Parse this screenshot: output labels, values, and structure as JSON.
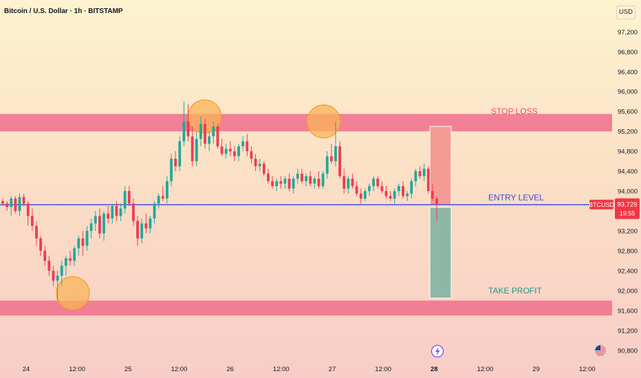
{
  "header": {
    "title": "Bitcoin / U.S. Dollar · 1h · BITSTAMP",
    "currency": "USD"
  },
  "colors": {
    "up": "#22a89a",
    "down": "#f03b52",
    "band": "#f06f8c",
    "entry_line": "#3b4ad8",
    "stop_zone": "#f59b95",
    "profit_zone": "#8fb7a6",
    "circle_fill": "#f9b45a",
    "circle_stroke": "#f5a028"
  },
  "chart_data": {
    "type": "candlestick",
    "symbol": "BTCUSD",
    "y_ticks": [
      97200,
      96800,
      96400,
      96000,
      95600,
      95200,
      94800,
      94400,
      94000,
      93200,
      92800,
      92400,
      92000,
      91600,
      91200,
      90800
    ],
    "y_tick_labels": [
      "97,200",
      "96,800",
      "96,400",
      "96,000",
      "95,600",
      "95,200",
      "94,800",
      "94,400",
      "94,000",
      "93,200",
      "92,800",
      "92,400",
      "92,000",
      "91,600",
      "91,200",
      "90,800"
    ],
    "ylim": [
      90700,
      97550
    ],
    "x_ticks": [
      {
        "label": "24",
        "hours": 9,
        "bold": false
      },
      {
        "label": "12:00",
        "hours": 21,
        "bold": false
      },
      {
        "label": "25",
        "hours": 33,
        "bold": false
      },
      {
        "label": "12:00",
        "hours": 45,
        "bold": false
      },
      {
        "label": "26",
        "hours": 57,
        "bold": false
      },
      {
        "label": "12:00",
        "hours": 69,
        "bold": false
      },
      {
        "label": "27",
        "hours": 81,
        "bold": false
      },
      {
        "label": "12:00",
        "hours": 93,
        "bold": false
      },
      {
        "label": "28",
        "hours": 105,
        "bold": true
      },
      {
        "label": "12:00",
        "hours": 117,
        "bold": false
      },
      {
        "label": "29",
        "hours": 129,
        "bold": false
      },
      {
        "label": "12:00",
        "hours": 141,
        "bold": false
      }
    ],
    "candles": [
      [
        93800,
        93850,
        93700,
        93750
      ],
      [
        93750,
        93800,
        93600,
        93680
      ],
      [
        93680,
        93900,
        93500,
        93850
      ],
      [
        93850,
        93900,
        93550,
        93600
      ],
      [
        93600,
        93950,
        93500,
        93880
      ],
      [
        93880,
        93950,
        93700,
        93750
      ],
      [
        93750,
        93800,
        93300,
        93500
      ],
      [
        93500,
        93650,
        93200,
        93300
      ],
      [
        93300,
        93400,
        92900,
        93050
      ],
      [
        93050,
        93100,
        92700,
        92800
      ],
      [
        92800,
        92900,
        92500,
        92600
      ],
      [
        92600,
        92700,
        92300,
        92400
      ],
      [
        92400,
        92500,
        92100,
        92200
      ],
      [
        92200,
        92400,
        91800,
        92300
      ],
      [
        92300,
        92600,
        92100,
        92500
      ],
      [
        92500,
        92700,
        92300,
        92650
      ],
      [
        92650,
        92800,
        92500,
        92600
      ],
      [
        92600,
        92900,
        92500,
        92850
      ],
      [
        92850,
        93100,
        92700,
        93050
      ],
      [
        93050,
        93200,
        92700,
        92900
      ],
      [
        92900,
        93300,
        92800,
        93200
      ],
      [
        93200,
        93450,
        93050,
        93350
      ],
      [
        93350,
        93600,
        93200,
        93500
      ],
      [
        93500,
        93650,
        93050,
        93150
      ],
      [
        93150,
        93600,
        93000,
        93550
      ],
      [
        93550,
        93700,
        93350,
        93450
      ],
      [
        93450,
        93750,
        93350,
        93700
      ],
      [
        93700,
        93800,
        93400,
        93500
      ],
      [
        93500,
        93750,
        93400,
        93650
      ],
      [
        93650,
        94100,
        93550,
        94000
      ],
      [
        94000,
        94100,
        93700,
        93750
      ],
      [
        93750,
        93850,
        93300,
        93400
      ],
      [
        93400,
        93500,
        92900,
        93050
      ],
      [
        93050,
        93450,
        92950,
        93350
      ],
      [
        93350,
        93550,
        93150,
        93250
      ],
      [
        93250,
        93500,
        93150,
        93450
      ],
      [
        93450,
        93800,
        93350,
        93750
      ],
      [
        93750,
        93950,
        93650,
        93900
      ],
      [
        93900,
        94100,
        93800,
        93850
      ],
      [
        93850,
        94300,
        93750,
        94200
      ],
      [
        94200,
        94750,
        94100,
        94650
      ],
      [
        94650,
        94800,
        94400,
        94500
      ],
      [
        94500,
        95100,
        94400,
        95000
      ],
      [
        95000,
        95800,
        94900,
        95400
      ],
      [
        95400,
        95750,
        95000,
        95100
      ],
      [
        95100,
        95300,
        94500,
        94600
      ],
      [
        94600,
        95200,
        94500,
        95050
      ],
      [
        95050,
        95500,
        94900,
        95350
      ],
      [
        95350,
        95450,
        94850,
        94950
      ],
      [
        94950,
        95200,
        94800,
        95100
      ],
      [
        95100,
        95400,
        94950,
        95300
      ],
      [
        95300,
        95350,
        94850,
        94900
      ],
      [
        94900,
        95050,
        94700,
        94750
      ],
      [
        94750,
        94950,
        94650,
        94850
      ],
      [
        94850,
        95000,
        94700,
        94800
      ],
      [
        94800,
        94900,
        94600,
        94700
      ],
      [
        94700,
        94950,
        94600,
        94900
      ],
      [
        94900,
        95100,
        94800,
        95000
      ],
      [
        95000,
        95150,
        94700,
        94800
      ],
      [
        94800,
        94900,
        94550,
        94650
      ],
      [
        94650,
        94750,
        94400,
        94500
      ],
      [
        94500,
        94650,
        94400,
        94550
      ],
      [
        94550,
        94600,
        94300,
        94350
      ],
      [
        94350,
        94450,
        94150,
        94200
      ],
      [
        94200,
        94300,
        94050,
        94100
      ],
      [
        94100,
        94250,
        94000,
        94200
      ],
      [
        94200,
        94300,
        94050,
        94150
      ],
      [
        94150,
        94300,
        94050,
        94250
      ],
      [
        94250,
        94350,
        94000,
        94050
      ],
      [
        94050,
        94300,
        93950,
        94250
      ],
      [
        94250,
        94450,
        94150,
        94350
      ],
      [
        94350,
        94450,
        94150,
        94200
      ],
      [
        94200,
        94350,
        94100,
        94300
      ],
      [
        94300,
        94400,
        94100,
        94150
      ],
      [
        94150,
        94300,
        94050,
        94250
      ],
      [
        94250,
        94400,
        94050,
        94100
      ],
      [
        94100,
        94400,
        94050,
        94350
      ],
      [
        94350,
        94800,
        94250,
        94700
      ],
      [
        94700,
        94950,
        94550,
        94600
      ],
      [
        94600,
        95400,
        94500,
        94900
      ],
      [
        94900,
        95000,
        94250,
        94300
      ],
      [
        94300,
        94450,
        93950,
        94050
      ],
      [
        94050,
        94300,
        93950,
        94250
      ],
      [
        94250,
        94350,
        94050,
        94100
      ],
      [
        94100,
        94200,
        93900,
        93950
      ],
      [
        93950,
        94050,
        93750,
        93850
      ],
      [
        93850,
        94050,
        93800,
        94000
      ],
      [
        94000,
        94150,
        93900,
        94100
      ],
      [
        94100,
        94300,
        94000,
        94250
      ],
      [
        94250,
        94300,
        94050,
        94100
      ],
      [
        94100,
        94200,
        93950,
        94000
      ],
      [
        94000,
        94100,
        93850,
        93900
      ],
      [
        93900,
        94000,
        93800,
        93850
      ],
      [
        93850,
        94050,
        93750,
        94000
      ],
      [
        94000,
        94150,
        93900,
        94100
      ],
      [
        94100,
        94200,
        93850,
        93900
      ],
      [
        93900,
        94000,
        93800,
        93950
      ],
      [
        93950,
        94250,
        93850,
        94200
      ],
      [
        94200,
        94450,
        94100,
        94400
      ],
      [
        94400,
        94500,
        94250,
        94300
      ],
      [
        94300,
        94550,
        94200,
        94450
      ],
      [
        94450,
        94500,
        93950,
        94000
      ],
      [
        94000,
        94150,
        93800,
        93850
      ],
      [
        93850,
        93900,
        93400,
        93729
      ]
    ],
    "last_price": {
      "symbol": "BTCUSD",
      "value": "93,729",
      "countdown": "19:55",
      "price": 93729
    },
    "levels": {
      "stop_loss": {
        "label": "STOP LOSS",
        "price": 95400
      },
      "entry": {
        "label": "ENTRY LEVEL",
        "price": 93729
      },
      "take_profit": {
        "label": "TAKE PROFIT",
        "price": 91650
      }
    },
    "bands": [
      {
        "low": 95200,
        "high": 95550
      },
      {
        "low": 91500,
        "high": 91800
      }
    ],
    "position_box": {
      "start_hours": 104,
      "end_hours": 109,
      "stop_price": 95300,
      "entry_price": 93729,
      "target_price": 91850
    },
    "highlight_circles": [
      {
        "hours": 20,
        "price": 91950
      },
      {
        "hours": 51,
        "price": 95500
      },
      {
        "hours": 79,
        "price": 95400
      }
    ],
    "grid": false,
    "icons": [
      "lightning-icon",
      "us-flag-icon"
    ]
  }
}
